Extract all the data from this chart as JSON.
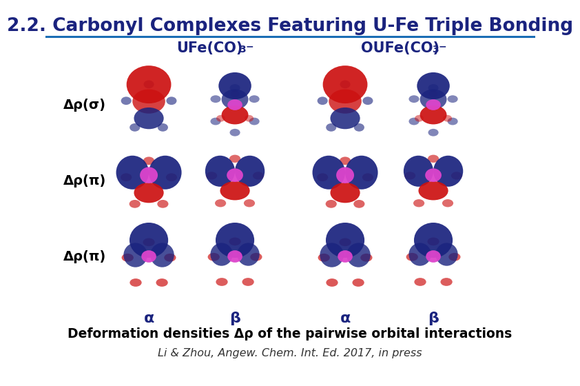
{
  "title": "2.2. Carbonyl Complexes Featuring U-Fe Triple Bonding",
  "title_color": "#1a237e",
  "title_fontsize": 19,
  "bg_color": "#ffffff",
  "header_line_color": "#1a6db5",
  "row_labels": [
    "Δρ(σ)",
    "Δρ(π)",
    "Δρ(π)"
  ],
  "col_labels": [
    "α",
    "β",
    "α",
    "β"
  ],
  "footer1": "Deformation densities Δρ of the pairwise orbital interactions",
  "footer2": "Li & Zhou, Angew. Chem. Int. Ed. 2017, in press",
  "footer1_fontsize": 13.5,
  "footer2_fontsize": 11.5,
  "label_color": "#000000",
  "col_label_fontsize": 16,
  "row_label_fontsize": 14,
  "header_fontsize": 15,
  "header_color": "#1a237e",
  "img_bg_color": "#f0f4ff",
  "red": "#cc1111",
  "blue": "#1a237e",
  "pink": "#dd44cc",
  "gray": "#888888"
}
